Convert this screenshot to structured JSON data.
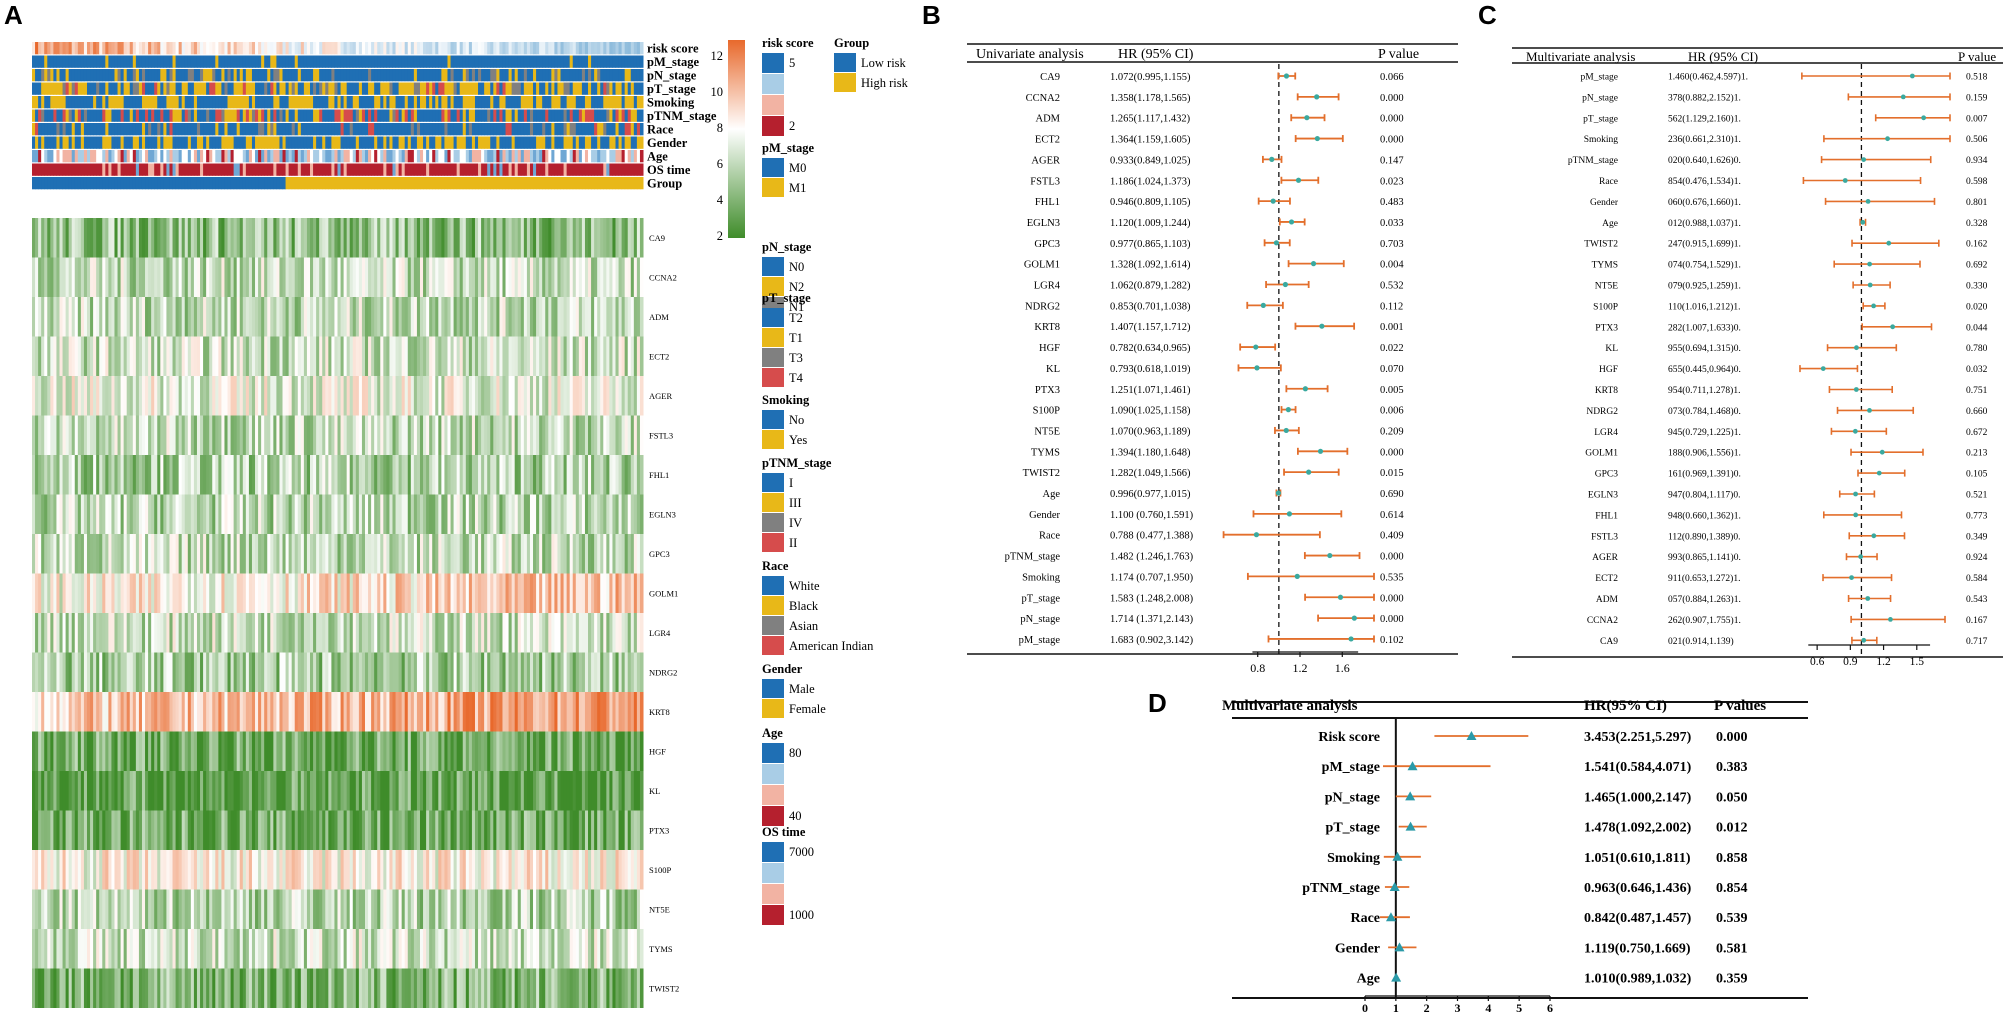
{
  "panels": {
    "A": "A",
    "B": "B",
    "C": "C",
    "D": "D"
  },
  "heatmap": {
    "annotation_rows": [
      "risk score",
      "pM_stage",
      "pN_stage",
      "pT_stage",
      "Smoking",
      "pTNM_stage",
      "Race",
      "Gender",
      "Age",
      "OS time",
      "Group"
    ],
    "genes": [
      "CA9",
      "CCNA2",
      "ADM",
      "ECT2",
      "AGER",
      "FSTL3",
      "FHL1",
      "EGLN3",
      "GPC3",
      "GOLM1",
      "LGR4",
      "NDRG2",
      "KRT8",
      "HGF",
      "KL",
      "PTX3",
      "S100P",
      "NT5E",
      "TYMS",
      "TWIST2"
    ],
    "colorbar_ticks": [
      "12",
      "10",
      "8",
      "6",
      "4",
      "2"
    ],
    "colors": {
      "high": "#e8692c",
      "mid": "#ffffff",
      "low": "#3f8c2a",
      "blue": "#1f6fb4",
      "yellow": "#e8b818",
      "grey": "#808080",
      "red": "#d64c4c",
      "darkred": "#b5202e",
      "pink": "#f2b3a3",
      "lightblue": "#a9cde6"
    }
  },
  "legend": {
    "risk_score": {
      "title": "risk score",
      "labels": [
        "5",
        "2"
      ]
    },
    "group": {
      "title": "Group",
      "labels": [
        "Low risk",
        "High risk"
      ]
    },
    "pM_stage": {
      "title": "pM_stage",
      "labels": [
        "M0",
        "M1"
      ]
    },
    "pN_stage": {
      "title": "pN_stage",
      "labels": [
        "N0",
        "N2",
        "N1"
      ]
    },
    "pT_stage": {
      "title": "pT_stage",
      "labels": [
        "T2",
        "T1",
        "T3",
        "T4"
      ]
    },
    "smoking": {
      "title": "Smoking",
      "labels": [
        "No",
        "Yes"
      ]
    },
    "pTNM_stage": {
      "title": "pTNM_stage",
      "labels": [
        "I",
        "III",
        "IV",
        "II"
      ]
    },
    "race": {
      "title": "Race",
      "labels": [
        "White",
        "Black",
        "Asian",
        "American Indian"
      ]
    },
    "gender": {
      "title": "Gender",
      "labels": [
        "Male",
        "Female"
      ]
    },
    "age": {
      "title": "Age",
      "labels": [
        "80",
        "40"
      ]
    },
    "os_time": {
      "title": "OS time",
      "labels": [
        "7000",
        "1000"
      ]
    }
  },
  "chart_data": [
    {
      "type": "forest",
      "panel": "B",
      "title": "Univariate analysis",
      "col_hr": "HR (95% CI)",
      "col_p": "P value",
      "xticks": [
        "0.8",
        "1.2",
        "1.6"
      ],
      "xrange": [
        0.5,
        1.9
      ],
      "ref": 1.0,
      "rows": [
        {
          "name": "CA9",
          "hr": 1.072,
          "lo": 0.995,
          "hi": 1.155,
          "text": "1.072(0.995,1.155)",
          "p": "0.066"
        },
        {
          "name": "CCNA2",
          "hr": 1.358,
          "lo": 1.178,
          "hi": 1.565,
          "text": "1.358(1.178,1.565)",
          "p": "0.000"
        },
        {
          "name": "ADM",
          "hr": 1.265,
          "lo": 1.117,
          "hi": 1.432,
          "text": "1.265(1.117,1.432)",
          "p": "0.000"
        },
        {
          "name": "ECT2",
          "hr": 1.364,
          "lo": 1.159,
          "hi": 1.605,
          "text": "1.364(1.159,1.605)",
          "p": "0.000"
        },
        {
          "name": "AGER",
          "hr": 0.933,
          "lo": 0.849,
          "hi": 1.025,
          "text": "0.933(0.849,1.025)",
          "p": "0.147"
        },
        {
          "name": "FSTL3",
          "hr": 1.186,
          "lo": 1.024,
          "hi": 1.373,
          "text": "1.186(1.024,1.373)",
          "p": "0.023"
        },
        {
          "name": "FHL1",
          "hr": 0.946,
          "lo": 0.809,
          "hi": 1.105,
          "text": "0.946(0.809,1.105)",
          "p": "0.483"
        },
        {
          "name": "EGLN3",
          "hr": 1.12,
          "lo": 1.009,
          "hi": 1.244,
          "text": "1.120(1.009,1.244)",
          "p": "0.033"
        },
        {
          "name": "GPC3",
          "hr": 0.977,
          "lo": 0.865,
          "hi": 1.103,
          "text": "0.977(0.865,1.103)",
          "p": "0.703"
        },
        {
          "name": "GOLM1",
          "hr": 1.328,
          "lo": 1.092,
          "hi": 1.614,
          "text": "1.328(1.092,1.614)",
          "p": "0.004"
        },
        {
          "name": "LGR4",
          "hr": 1.062,
          "lo": 0.879,
          "hi": 1.282,
          "text": "1.062(0.879,1.282)",
          "p": "0.532"
        },
        {
          "name": "NDRG2",
          "hr": 0.853,
          "lo": 0.701,
          "hi": 1.038,
          "text": "0.853(0.701,1.038)",
          "p": "0.112"
        },
        {
          "name": "KRT8",
          "hr": 1.407,
          "lo": 1.157,
          "hi": 1.712,
          "text": "1.407(1.157,1.712)",
          "p": "0.001"
        },
        {
          "name": "HGF",
          "hr": 0.782,
          "lo": 0.634,
          "hi": 0.965,
          "text": "0.782(0.634,0.965)",
          "p": "0.022"
        },
        {
          "name": "KL",
          "hr": 0.793,
          "lo": 0.618,
          "hi": 1.019,
          "text": "0.793(0.618,1.019)",
          "p": "0.070"
        },
        {
          "name": "PTX3",
          "hr": 1.251,
          "lo": 1.071,
          "hi": 1.461,
          "text": "1.251(1.071,1.461)",
          "p": "0.005"
        },
        {
          "name": "S100P",
          "hr": 1.09,
          "lo": 1.025,
          "hi": 1.158,
          "text": "1.090(1.025,1.158)",
          "p": "0.006"
        },
        {
          "name": "NT5E",
          "hr": 1.07,
          "lo": 0.963,
          "hi": 1.189,
          "text": "1.070(0.963,1.189)",
          "p": "0.209"
        },
        {
          "name": "TYMS",
          "hr": 1.394,
          "lo": 1.18,
          "hi": 1.648,
          "text": "1.394(1.180,1.648)",
          "p": "0.000"
        },
        {
          "name": "TWIST2",
          "hr": 1.282,
          "lo": 1.049,
          "hi": 1.566,
          "text": "1.282(1.049,1.566)",
          "p": "0.015"
        },
        {
          "name": "Age",
          "hr": 0.996,
          "lo": 0.977,
          "hi": 1.015,
          "text": "0.996(0.977,1.015)",
          "p": "0.690"
        },
        {
          "name": "Gender",
          "hr": 1.1,
          "lo": 0.76,
          "hi": 1.591,
          "text": "1.100 (0.760,1.591)",
          "p": "0.614"
        },
        {
          "name": "Race",
          "hr": 0.788,
          "lo": 0.477,
          "hi": 1.388,
          "text": "0.788 (0.477,1.388)",
          "p": "0.409"
        },
        {
          "name": "pTNM_stage",
          "hr": 1.482,
          "lo": 1.246,
          "hi": 1.763,
          "text": "1.482 (1.246,1.763)",
          "p": "0.000"
        },
        {
          "name": "Smoking",
          "hr": 1.174,
          "lo": 0.707,
          "hi": 1.95,
          "text": "1.174 (0.707,1.950)",
          "p": "0.535"
        },
        {
          "name": "pT_stage",
          "hr": 1.583,
          "lo": 1.248,
          "hi": 2.008,
          "text": "1.583 (1.248,2.008)",
          "p": "0.000"
        },
        {
          "name": "pN_stage",
          "hr": 1.714,
          "lo": 1.371,
          "hi": 2.143,
          "text": "1.714 (1.371,2.143)",
          "p": "0.000"
        },
        {
          "name": "pM_stage",
          "hr": 1.683,
          "lo": 0.902,
          "hi": 3.142,
          "text": "1.683 (0.902,3.142)",
          "p": "0.102"
        }
      ]
    },
    {
      "type": "forest",
      "panel": "C",
      "title": "Multivariate analysis",
      "col_hr": "HR (95% CI)",
      "col_p": "P value",
      "xticks": [
        "0.6",
        "0.9",
        "1.2",
        "1.5"
      ],
      "xrange": [
        0.4,
        1.8
      ],
      "ref": 1.0,
      "rows": [
        {
          "name": "pM_stage",
          "hr": 1.46,
          "lo": 0.462,
          "hi": 4.597,
          "text": "1.460(0.462,4.597)1.",
          "p": "0.518"
        },
        {
          "name": "pN_stage",
          "hr": 1.378,
          "lo": 0.882,
          "hi": 2.152,
          "text": "378(0.882,2.152)1.",
          "p": "0.159"
        },
        {
          "name": "pT_stage",
          "hr": 1.562,
          "lo": 1.129,
          "hi": 2.16,
          "text": "562(1.129,2.160)1.",
          "p": "0.007"
        },
        {
          "name": "Smoking",
          "hr": 1.236,
          "lo": 0.661,
          "hi": 2.31,
          "text": "236(0.661,2.310)1.",
          "p": "0.506"
        },
        {
          "name": "pTNM_stage",
          "hr": 1.02,
          "lo": 0.64,
          "hi": 1.626,
          "text": "020(0.640,1.626)0.",
          "p": "0.934"
        },
        {
          "name": "Race",
          "hr": 0.854,
          "lo": 0.476,
          "hi": 1.534,
          "text": "854(0.476,1.534)1.",
          "p": "0.598"
        },
        {
          "name": "Gender",
          "hr": 1.06,
          "lo": 0.676,
          "hi": 1.66,
          "text": "060(0.676,1.660)1.",
          "p": "0.801"
        },
        {
          "name": "Age",
          "hr": 1.012,
          "lo": 0.988,
          "hi": 1.037,
          "text": "012(0.988,1.037)1.",
          "p": "0.328"
        },
        {
          "name": "TWIST2",
          "hr": 1.247,
          "lo": 0.915,
          "hi": 1.699,
          "text": "247(0.915,1.699)1.",
          "p": "0.162"
        },
        {
          "name": "TYMS",
          "hr": 1.074,
          "lo": 0.754,
          "hi": 1.529,
          "text": "074(0.754,1.529)1.",
          "p": "0.692"
        },
        {
          "name": "NT5E",
          "hr": 1.079,
          "lo": 0.925,
          "hi": 1.259,
          "text": "079(0.925,1.259)1.",
          "p": "0.330"
        },
        {
          "name": "S100P",
          "hr": 1.11,
          "lo": 1.016,
          "hi": 1.212,
          "text": "110(1.016,1.212)1.",
          "p": "0.020"
        },
        {
          "name": "PTX3",
          "hr": 1.282,
          "lo": 1.007,
          "hi": 1.633,
          "text": "282(1.007,1.633)0.",
          "p": "0.044"
        },
        {
          "name": "KL",
          "hr": 0.955,
          "lo": 0.694,
          "hi": 1.315,
          "text": "955(0.694,1.315)0.",
          "p": "0.780"
        },
        {
          "name": "HGF",
          "hr": 0.655,
          "lo": 0.445,
          "hi": 0.964,
          "text": "655(0.445,0.964)0.",
          "p": "0.032"
        },
        {
          "name": "KRT8",
          "hr": 0.954,
          "lo": 0.711,
          "hi": 1.278,
          "text": "954(0.711,1.278)1.",
          "p": "0.751"
        },
        {
          "name": "NDRG2",
          "hr": 1.073,
          "lo": 0.784,
          "hi": 1.468,
          "text": "073(0.784,1.468)0.",
          "p": "0.660"
        },
        {
          "name": "LGR4",
          "hr": 0.945,
          "lo": 0.729,
          "hi": 1.225,
          "text": "945(0.729,1.225)1.",
          "p": "0.672"
        },
        {
          "name": "GOLM1",
          "hr": 1.188,
          "lo": 0.906,
          "hi": 1.556,
          "text": "188(0.906,1.556)1.",
          "p": "0.213"
        },
        {
          "name": "GPC3",
          "hr": 1.161,
          "lo": 0.969,
          "hi": 1.391,
          "text": "161(0.969,1.391)0.",
          "p": "0.105"
        },
        {
          "name": "EGLN3",
          "hr": 0.947,
          "lo": 0.804,
          "hi": 1.117,
          "text": "947(0.804,1.117)0.",
          "p": "0.521"
        },
        {
          "name": "FHL1",
          "hr": 0.948,
          "lo": 0.66,
          "hi": 1.362,
          "text": "948(0.660,1.362)1.",
          "p": "0.773"
        },
        {
          "name": "FSTL3",
          "hr": 1.112,
          "lo": 0.89,
          "hi": 1.389,
          "text": "112(0.890,1.389)0.",
          "p": "0.349"
        },
        {
          "name": "AGER",
          "hr": 0.993,
          "lo": 0.865,
          "hi": 1.141,
          "text": "993(0.865,1.141)0.",
          "p": "0.924"
        },
        {
          "name": "ECT2",
          "hr": 0.911,
          "lo": 0.653,
          "hi": 1.272,
          "text": "911(0.653,1.272)1.",
          "p": "0.584"
        },
        {
          "name": "ADM",
          "hr": 1.057,
          "lo": 0.884,
          "hi": 1.263,
          "text": "057(0.884,1.263)1.",
          "p": "0.543"
        },
        {
          "name": "CCNA2",
          "hr": 1.262,
          "lo": 0.907,
          "hi": 1.755,
          "text": "262(0.907,1.755)1.",
          "p": "0.167"
        },
        {
          "name": "CA9",
          "hr": 1.021,
          "lo": 0.914,
          "hi": 1.139,
          "text": "021(0.914,1.139)",
          "p": "0.717"
        }
      ]
    },
    {
      "type": "forest",
      "panel": "D",
      "title": "Multivariate analysis",
      "col_hr": "HR(95% CI)",
      "col_p": "P values",
      "xticks": [
        "0",
        "1",
        "2",
        "3",
        "4",
        "5",
        "6"
      ],
      "xrange": [
        0,
        6
      ],
      "ref": 1.0,
      "rows": [
        {
          "name": "Risk score",
          "hr": 3.453,
          "lo": 2.251,
          "hi": 5.297,
          "text": "3.453(2.251,5.297)",
          "p": "0.000"
        },
        {
          "name": "pM_stage",
          "hr": 1.541,
          "lo": 0.584,
          "hi": 4.071,
          "text": "1.541(0.584,4.071)",
          "p": "0.383"
        },
        {
          "name": "pN_stage",
          "hr": 1.465,
          "lo": 1.0,
          "hi": 2.147,
          "text": "1.465(1.000,2.147)",
          "p": "0.050"
        },
        {
          "name": "pT_stage",
          "hr": 1.478,
          "lo": 1.092,
          "hi": 2.002,
          "text": "1.478(1.092,2.002)",
          "p": "0.012"
        },
        {
          "name": "Smoking",
          "hr": 1.051,
          "lo": 0.61,
          "hi": 1.811,
          "text": "1.051(0.610,1.811)",
          "p": "0.858"
        },
        {
          "name": "pTNM_stage",
          "hr": 0.963,
          "lo": 0.646,
          "hi": 1.436,
          "text": "0.963(0.646,1.436)",
          "p": "0.854"
        },
        {
          "name": "Race",
          "hr": 0.842,
          "lo": 0.487,
          "hi": 1.457,
          "text": "0.842(0.487,1.457)",
          "p": "0.539"
        },
        {
          "name": "Gender",
          "hr": 1.119,
          "lo": 0.75,
          "hi": 1.669,
          "text": "1.119(0.750,1.669)",
          "p": "0.581"
        },
        {
          "name": "Age",
          "hr": 1.01,
          "lo": 0.989,
          "hi": 1.032,
          "text": "1.010(0.989,1.032)",
          "p": "0.359"
        }
      ]
    }
  ]
}
